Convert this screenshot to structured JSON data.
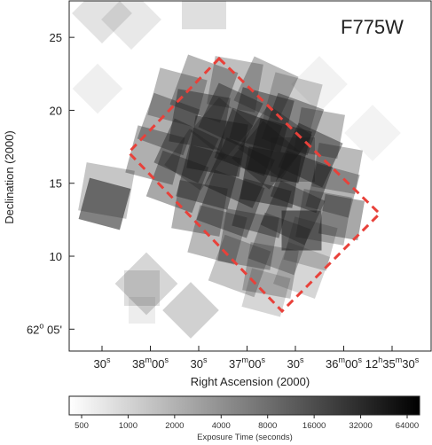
{
  "chart_data": {
    "type": "heatmap",
    "panel_label": "F775W",
    "xlabel": "Right Ascension (2000)",
    "ylabel": "Declination (2000)",
    "x_ticks": [
      {
        "main": "30",
        "sup": "s"
      },
      {
        "main": "38",
        "sup": "m",
        "main2": "00",
        "sup2": "s"
      },
      {
        "main": "30",
        "sup": "s"
      },
      {
        "main": "37",
        "sup": "m",
        "main2": "00",
        "sup2": "s"
      },
      {
        "main": "30",
        "sup": "s"
      },
      {
        "main": "36",
        "sup": "m",
        "main2": "00",
        "sup2": "s"
      },
      {
        "main": "12",
        "sup": "h",
        "main2": "35",
        "sup2": "m",
        "main3": "30",
        "sup3": "s"
      }
    ],
    "y_ticks": [
      {
        "label": "25",
        "value": 25
      },
      {
        "label": "20",
        "value": 20
      },
      {
        "label": "15",
        "value": 15
      },
      {
        "label": "10",
        "value": 10
      }
    ],
    "y_tick_degree": {
      "main": "62",
      "sup": "o",
      "rest": " 05'",
      "value": 5
    },
    "ylim": [
      3.5,
      27.5
    ],
    "colorbar": {
      "label": "Exposure Time (seconds)",
      "scale": "log",
      "ticks": [
        "500",
        "1000",
        "2000",
        "4000",
        "8000",
        "16000",
        "32000",
        "64000"
      ],
      "colors": [
        "#ffffff",
        "#000000"
      ]
    },
    "footprint_outline_color": "#e8413a"
  }
}
